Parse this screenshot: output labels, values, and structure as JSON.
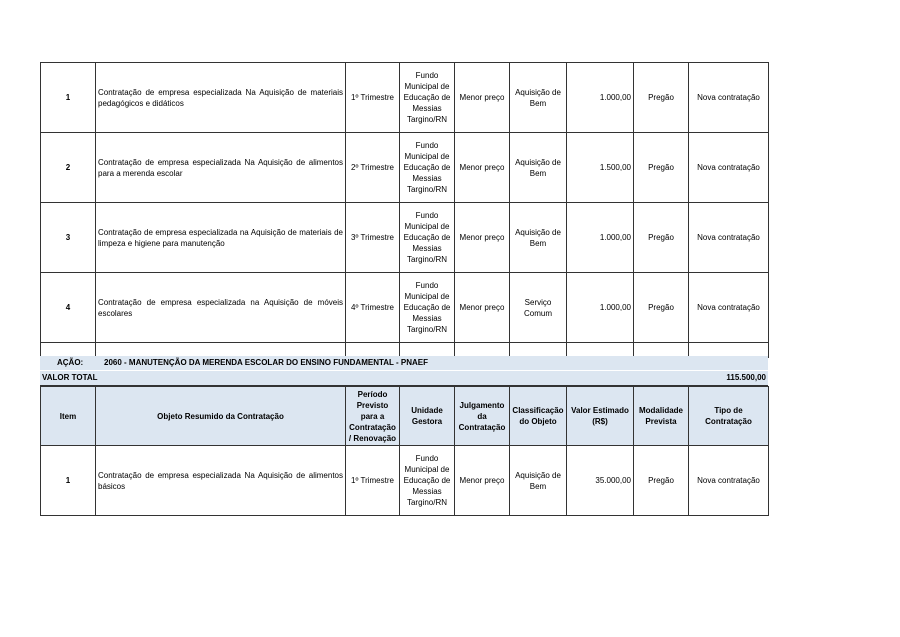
{
  "columns": [
    "Item",
    "Objeto Resumido da Contratação",
    "Período Previsto para a Contratação / Renovação",
    "Unidade Gestora",
    "Julgamento da Contratação",
    "Classificação do Objeto",
    "Valor Estimado (R$)",
    "Modalidade Prevista",
    "Tipo de Contratação"
  ],
  "section1_rows": [
    {
      "item": "1",
      "objeto": "Contratação de empresa especializada Na Aquisição de materiais pedagógicos e didáticos",
      "periodo": "1º Trimestre",
      "unidade": "Fundo Municipal de Educação de Messias Targino/RN",
      "julgamento": "Menor preço",
      "classificacao": "Aquisição de Bem",
      "valor": "1.000,00",
      "modalidade": "Pregão",
      "tipo": "Nova contratação"
    },
    {
      "item": "2",
      "objeto": "Contratação de empresa especializada Na Aquisição de alimentos para a merenda escolar",
      "periodo": "2º Trimestre",
      "unidade": "Fundo Municipal de Educação de Messias Targino/RN",
      "julgamento": "Menor preço",
      "classificacao": "Aquisição de Bem",
      "valor": "1.500,00",
      "modalidade": "Pregão",
      "tipo": "Nova contratação"
    },
    {
      "item": "3",
      "objeto": "Contratação de empresa especializada na Aquisição de materiais de limpeza e higiene para manutenção",
      "periodo": "3º Trimestre",
      "unidade": "Fundo Municipal de Educação de Messias Targino/RN",
      "julgamento": "Menor preço",
      "classificacao": "Aquisição de Bem",
      "valor": "1.000,00",
      "modalidade": "Pregão",
      "tipo": "Nova contratação"
    },
    {
      "item": "4",
      "objeto": "Contratação de empresa especializada na Aquisição de móveis escolares",
      "periodo": "4º Trimestre",
      "unidade": "Fundo Municipal de Educação de Messias Targino/RN",
      "julgamento": "Menor preço",
      "classificacao": "Serviço Comum",
      "valor": "1.000,00",
      "modalidade": "Pregão",
      "tipo": "Nova contratação"
    }
  ],
  "acao": {
    "label": "AÇÃO:",
    "value": "2060 - MANUTENÇÃO DA MERENDA ESCOLAR DO ENSINO FUNDAMENTAL - PNAEF"
  },
  "valor_total": {
    "label": "VALOR TOTAL",
    "value": "115.500,00"
  },
  "section2_rows": [
    {
      "item": "1",
      "objeto": "Contratação de empresa especializada Na Aquisição de alimentos básicos",
      "periodo": "1º Trimestre",
      "unidade": "Fundo Municipal de Educação de Messias Targino/RN",
      "julgamento": "Menor preço",
      "classificacao": "Aquisição de Bem",
      "valor": "35.000,00",
      "modalidade": "Pregão",
      "tipo": "Nova contratação"
    }
  ]
}
